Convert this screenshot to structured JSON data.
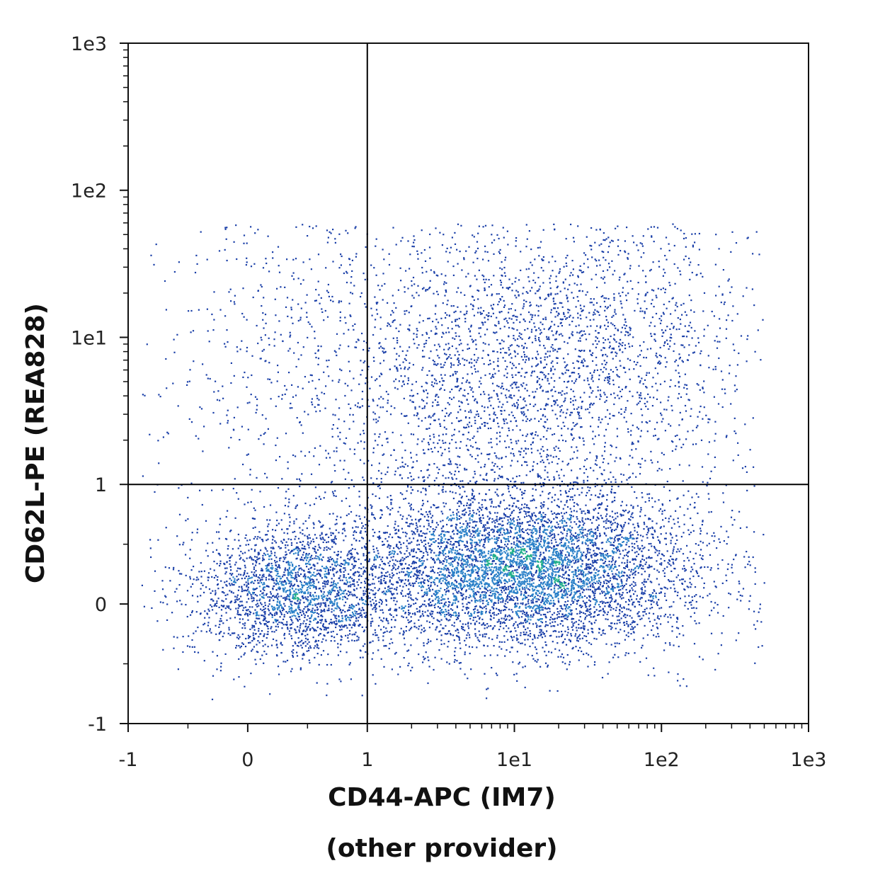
{
  "chart_data": {
    "type": "scatter",
    "subtype": "flow cytometry density dot plot",
    "title": "",
    "xlabel": "CD44-APC (IM7)",
    "xlabel_line2": "(other provider)",
    "ylabel": "CD62L-PE (REA828)",
    "x_scale": "biexponential (linear near 0, log above 1)",
    "y_scale": "biexponential (linear near 0, log above 1)",
    "xlim": [
      -1,
      1000
    ],
    "ylim": [
      -1,
      1000
    ],
    "x_ticks": [
      "-1",
      "0",
      "1",
      "1e1",
      "1e2",
      "1e3"
    ],
    "y_ticks": [
      "-1",
      "0",
      "1",
      "1e1",
      "1e2",
      "1e3"
    ],
    "grid": false,
    "legend": "none",
    "gates": {
      "x": 1,
      "y": 1
    },
    "color_scale": [
      "#1a3fa8",
      "#2a80c8",
      "#22b08a",
      "#4ed850",
      "#a8f020"
    ],
    "populations": [
      {
        "name_hint": "lower-left cluster",
        "x_center": 0.4,
        "y_center": 0.1,
        "density": "high"
      },
      {
        "name_hint": "lower-right cluster",
        "x_center": 11,
        "y_center": 0.3,
        "density": "very high"
      },
      {
        "name_hint": "upper diffuse cloud",
        "x_center": 10,
        "y_center": 5,
        "density": "low"
      }
    ]
  }
}
